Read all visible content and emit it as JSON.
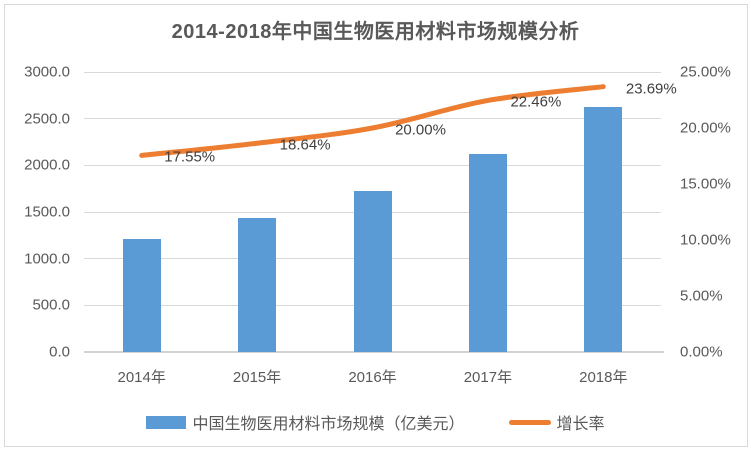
{
  "chart_data": {
    "type": "bar",
    "title": "2014-2018年中国生物医用材料市场规模分析",
    "categories": [
      "2014年",
      "2015年",
      "2016年",
      "2017年",
      "2018年"
    ],
    "series": [
      {
        "name": "中国生物医用材料市场规模（亿美元）",
        "type": "bar",
        "axis": "left",
        "color": "#5B9BD5",
        "values": [
          1215,
          1441,
          1730,
          2118,
          2620
        ]
      },
      {
        "name": "增长率",
        "type": "line",
        "axis": "right",
        "color": "#ED7D31",
        "values": [
          17.55,
          18.64,
          20.0,
          22.46,
          23.69
        ],
        "point_labels": [
          "17.55%",
          "18.64%",
          "20.00%",
          "22.46%",
          "23.69%"
        ]
      }
    ],
    "left_axis": {
      "min": 0,
      "max": 3000,
      "step": 500,
      "tick_labels": [
        "0.0",
        "500.0",
        "1000.0",
        "1500.0",
        "2000.0",
        "2500.0",
        "3000.0"
      ]
    },
    "right_axis": {
      "min": 0,
      "max": 25,
      "step": 5,
      "tick_labels": [
        "0.00%",
        "5.00%",
        "10.00%",
        "15.00%",
        "20.00%",
        "25.00%"
      ]
    },
    "grid": true,
    "legend_position": "bottom"
  },
  "colors": {
    "bar": "#5B9BD5",
    "line": "#ED7D31",
    "gridline": "#D9D9D9",
    "axis_text": "#595959",
    "point_label_text": "#404040",
    "title_text": "#595959",
    "frame_border": "#D9D9D9"
  }
}
